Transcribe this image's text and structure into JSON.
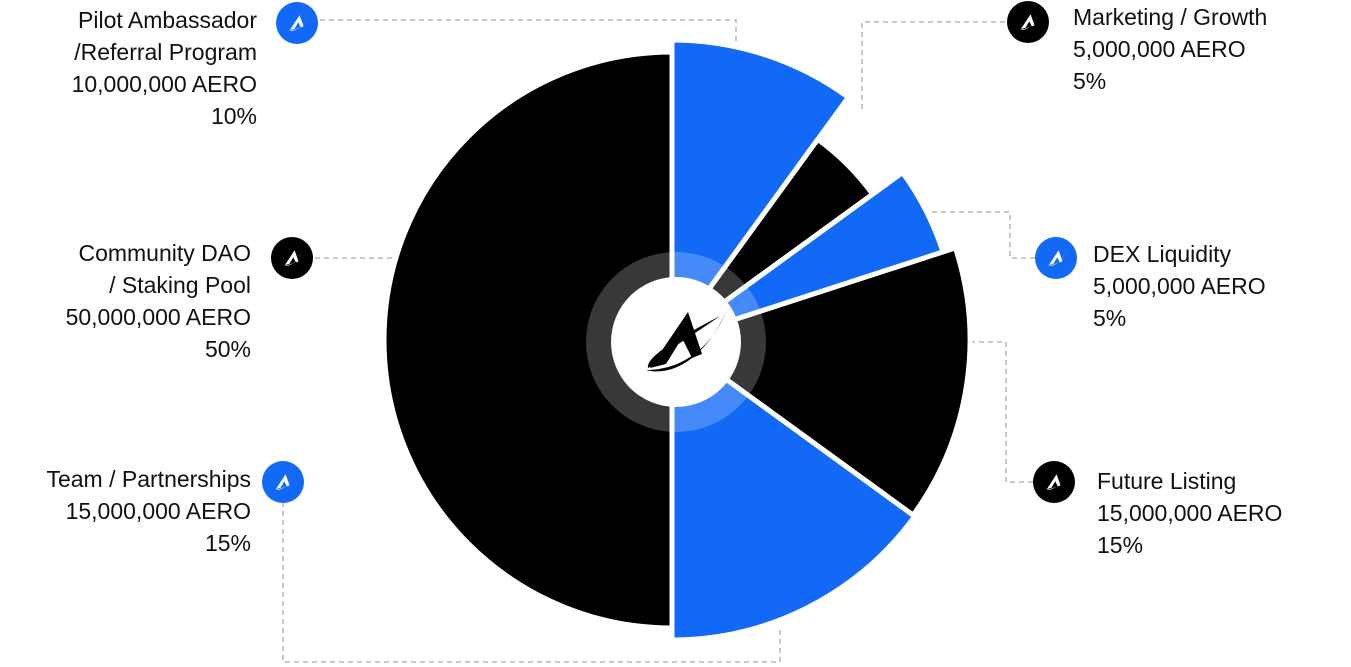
{
  "colors": {
    "blue": "#1169f6",
    "black": "#000000",
    "ring": "#3d3d3d"
  },
  "center_icon": "aero-logo-icon",
  "chart_data": {
    "type": "pie",
    "title": "",
    "slices": [
      {
        "label_lines": [
          "Pilot Ambassador",
          "/Referral Program"
        ],
        "amount": "10,000,000 AERO",
        "percent_label": "10%",
        "value": 10,
        "color": "blue"
      },
      {
        "label_lines": [
          "Marketing / Growth"
        ],
        "amount": "5,000,000 AERO",
        "percent_label": "5%",
        "value": 5,
        "color": "black"
      },
      {
        "label_lines": [
          "DEX Liquidity"
        ],
        "amount": "5,000,000 AERO",
        "percent_label": "5%",
        "value": 5,
        "color": "blue"
      },
      {
        "label_lines": [
          "Future Listing"
        ],
        "amount": "15,000,000 AERO",
        "percent_label": "15%",
        "value": 15,
        "color": "black"
      },
      {
        "label_lines": [
          "Team / Partnerships"
        ],
        "amount": "15,000,000 AERO",
        "percent_label": "15%",
        "value": 15,
        "color": "blue"
      },
      {
        "label_lines": [
          "Community DAO",
          "/ Staking Pool"
        ],
        "amount": "50,000,000 AERO",
        "percent_label": "50%",
        "value": 50,
        "color": "black"
      }
    ]
  }
}
